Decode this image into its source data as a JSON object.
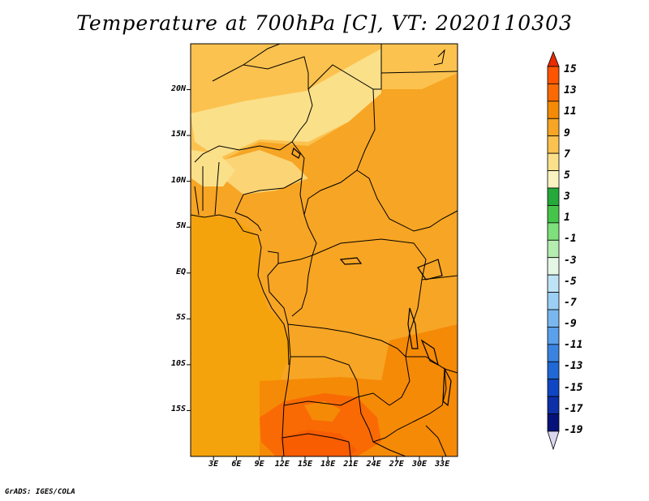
{
  "title": "Temperature at 700hPa [C], VT: 2020110303",
  "credit": "GrADS: IGES/COLA",
  "map": {
    "lat_ticks": [
      {
        "label": "20N",
        "value": 20
      },
      {
        "label": "15N",
        "value": 15
      },
      {
        "label": "10N",
        "value": 10
      },
      {
        "label": "5N",
        "value": 5
      },
      {
        "label": "EQ",
        "value": 0
      },
      {
        "label": "5S",
        "value": -5
      },
      {
        "label": "10S",
        "value": -10
      },
      {
        "label": "15S",
        "value": -15
      }
    ],
    "lon_ticks": [
      {
        "label": "3E",
        "value": 3
      },
      {
        "label": "6E",
        "value": 6
      },
      {
        "label": "9E",
        "value": 9
      },
      {
        "label": "12E",
        "value": 12
      },
      {
        "label": "15E",
        "value": 15
      },
      {
        "label": "18E",
        "value": 18
      },
      {
        "label": "21E",
        "value": 21
      },
      {
        "label": "24E",
        "value": 24
      },
      {
        "label": "27E",
        "value": 27
      },
      {
        "label": "30E",
        "value": 30
      },
      {
        "label": "33E",
        "value": 33
      }
    ],
    "lon_range": [
      0,
      35
    ],
    "lat_range": [
      -20,
      25
    ],
    "ocean_color": "#f5a30c"
  },
  "colorbar": {
    "labels": [
      "15",
      "13",
      "11",
      "9",
      "7",
      "5",
      "3",
      "1",
      "-1",
      "-3",
      "-5",
      "-7",
      "-9",
      "-11",
      "-13",
      "-15",
      "-17",
      "-19"
    ],
    "colors": [
      "#ff5500",
      "#f96a04",
      "#f58a07",
      "#f7a524",
      "#fbc24f",
      "#fbe08a",
      "#faf2c0",
      "#25a93a",
      "#46c44a",
      "#7ee07c",
      "#b5ecb0",
      "#e4f7e4",
      "#bee3f7",
      "#9ccff4",
      "#7ab7ef",
      "#5aa0eb",
      "#3a83e0",
      "#1f68d6",
      "#1046c4",
      "#0d2fa8",
      "#06127a"
    ],
    "top_arrow_color": "#e82b00",
    "bottom_arrow_color": "#dad6f0"
  }
}
